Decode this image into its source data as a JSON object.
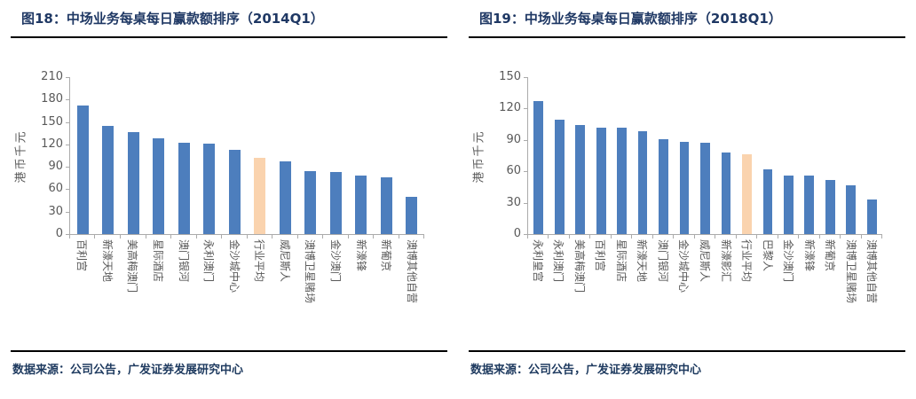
{
  "chart_data": [
    {
      "type": "bar",
      "title": "图18：中场业务每桌每日赢款额排序（2014Q1）",
      "ylabel": "港币千元",
      "categories": [
        "百利宫",
        "新濠天地",
        "美高梅澳门",
        "星际酒店",
        "澳门银河",
        "永利澳门",
        "金沙城中心",
        "行业平均",
        "威尼斯人",
        "澳博卫星赌场",
        "金沙澳门",
        "新濠锋",
        "新葡京",
        "澳博其他自营"
      ],
      "values": [
        172,
        145,
        136,
        128,
        122,
        121,
        113,
        102,
        97,
        84,
        83,
        78,
        76,
        50
      ],
      "highlight_index": 7,
      "highlight_category": "行业平均",
      "ylim": [
        0,
        210
      ],
      "yticks": [
        0,
        30,
        60,
        90,
        120,
        150,
        180,
        210
      ],
      "bar_color": "#4D7EBD",
      "highlight_color": "#FAD3AE",
      "grid": "off",
      "legend": "none",
      "source": "数据来源：公司公告，广发证券发展研究中心"
    },
    {
      "type": "bar",
      "title": "图19：中场业务每桌每日赢款额排序（2018Q1）",
      "ylabel": "港币千元",
      "categories": [
        "永利皇宫",
        "永利澳门",
        "美高梅澳门",
        "百利宫",
        "星际酒店",
        "新濠天地",
        "澳门银河",
        "金沙城中心",
        "威尼斯人",
        "新濠影汇",
        "行业平均",
        "巴黎人",
        "金沙澳门",
        "新濠锋",
        "新葡京",
        "澳博卫星赌场",
        "澳博其他自营"
      ],
      "values": [
        127,
        109,
        104,
        102,
        102,
        98,
        91,
        88,
        87,
        78,
        76,
        62,
        56,
        56,
        52,
        47,
        33
      ],
      "highlight_index": 10,
      "highlight_category": "行业平均",
      "ylim": [
        0,
        150
      ],
      "yticks": [
        0,
        30,
        60,
        90,
        120,
        150
      ],
      "bar_color": "#4D7EBD",
      "highlight_color": "#FAD3AE",
      "grid": "off",
      "legend": "none",
      "source": "数据来源：公司公告，广发证券发展研究中心"
    }
  ]
}
